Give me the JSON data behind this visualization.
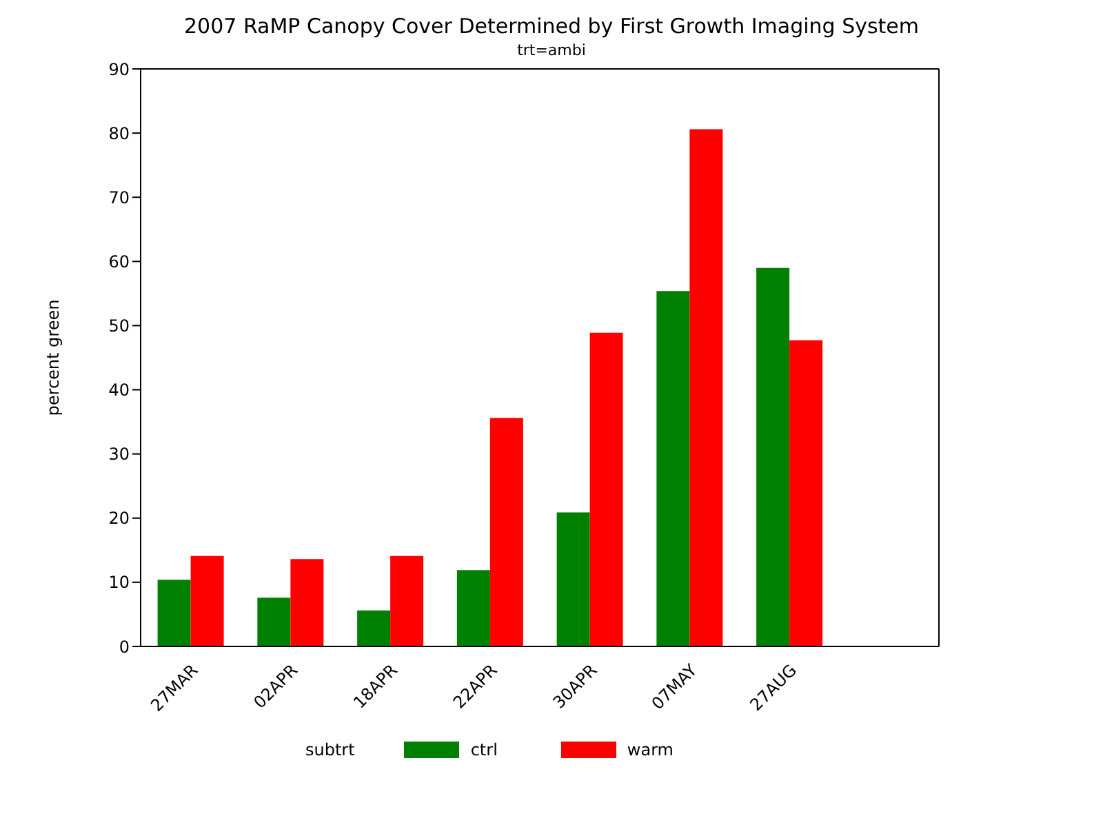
{
  "chart_data": {
    "type": "bar",
    "title": "2007 RaMP Canopy Cover Determined by First Growth Imaging System",
    "subtitle": "trt=ambi",
    "ylabel": "percent green",
    "legend_title": "subtrt",
    "categories": [
      "27MAR",
      "02APR",
      "18APR",
      "22APR",
      "30APR",
      "07MAY",
      "27AUG",
      null
    ],
    "series": [
      {
        "name": "ctrl",
        "color": "#008000",
        "values": [
          10.4,
          7.6,
          5.6,
          11.9,
          20.9,
          55.4,
          59.0,
          null
        ]
      },
      {
        "name": "warm",
        "color": "#ff0000",
        "values": [
          14.1,
          13.6,
          14.1,
          35.6,
          48.9,
          80.6,
          47.7,
          null
        ]
      }
    ],
    "ylim": [
      0,
      90
    ],
    "yticks": [
      0,
      10,
      20,
      30,
      40,
      50,
      60,
      70,
      80,
      90
    ],
    "legend": "bottom"
  }
}
